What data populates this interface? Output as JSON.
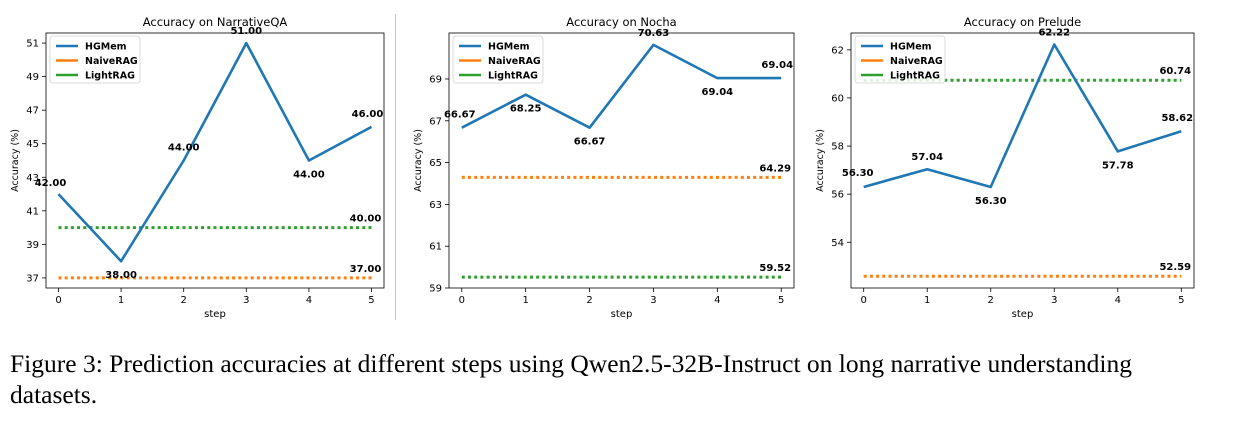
{
  "chart_data": [
    {
      "type": "line",
      "title": "Accuracy on NarrativeQA",
      "xlabel": "step",
      "ylabel": "Accuracy (%)",
      "x": [
        0,
        1,
        2,
        3,
        4,
        5
      ],
      "xticks": [
        "0",
        "1",
        "2",
        "3",
        "4",
        "5"
      ],
      "yticks": [
        "37",
        "39",
        "41",
        "43",
        "45",
        "47",
        "49",
        "51"
      ],
      "ylim": [
        36.4,
        51.6
      ],
      "legend_position": "upper-left",
      "series": [
        {
          "name": "HGMem",
          "color": "#1f77b4",
          "style": "solid",
          "values": [
            42.0,
            38.0,
            44.0,
            51.0,
            44.0,
            46.0
          ],
          "labels": [
            "42.00",
            "38.00",
            "44.00",
            "51.00",
            "44.00",
            "46.00"
          ]
        },
        {
          "name": "NaiveRAG",
          "color": "#ff7f0e",
          "style": "dotted",
          "values": [
            37.0,
            37.0,
            37.0,
            37.0,
            37.0,
            37.0
          ],
          "labels": [
            "",
            "",
            "",
            "",
            "",
            "37.00"
          ]
        },
        {
          "name": "LightRAG",
          "color": "#2ca02c",
          "style": "dotted",
          "values": [
            40.0,
            40.0,
            40.0,
            40.0,
            40.0,
            40.0
          ],
          "labels": [
            "",
            "",
            "",
            "",
            "",
            "40.00"
          ]
        }
      ]
    },
    {
      "type": "line",
      "title": "Accuracy on Nocha",
      "xlabel": "step",
      "ylabel": "Accuracy (%)",
      "x": [
        0,
        1,
        2,
        3,
        4,
        5
      ],
      "xticks": [
        "0",
        "1",
        "2",
        "3",
        "4",
        "5"
      ],
      "yticks": [
        "59",
        "61",
        "63",
        "65",
        "67",
        "69"
      ],
      "ylim": [
        59.0,
        71.2
      ],
      "legend_position": "upper-left",
      "series": [
        {
          "name": "HGMem",
          "color": "#1f77b4",
          "style": "solid",
          "values": [
            66.67,
            68.25,
            66.67,
            70.63,
            69.04,
            69.04
          ],
          "labels": [
            "66.67",
            "68.25",
            "66.67",
            "70.63",
            "69.04",
            "69.04"
          ]
        },
        {
          "name": "NaiveRAG",
          "color": "#ff7f0e",
          "style": "dotted",
          "values": [
            64.29,
            64.29,
            64.29,
            64.29,
            64.29,
            64.29
          ],
          "labels": [
            "",
            "",
            "",
            "",
            "",
            "64.29"
          ]
        },
        {
          "name": "LightRAG",
          "color": "#2ca02c",
          "style": "dotted",
          "values": [
            59.52,
            59.52,
            59.52,
            59.52,
            59.52,
            59.52
          ],
          "labels": [
            "",
            "",
            "",
            "",
            "",
            "59.52"
          ]
        }
      ]
    },
    {
      "type": "line",
      "title": "Accuracy on Prelude",
      "xlabel": "step",
      "ylabel": "Accuracy (%)",
      "x": [
        0,
        1,
        2,
        3,
        4,
        5
      ],
      "xticks": [
        "0",
        "1",
        "2",
        "3",
        "4",
        "5"
      ],
      "yticks": [
        "54",
        "56",
        "58",
        "60",
        "62"
      ],
      "ylim": [
        52.1,
        62.7
      ],
      "legend_position": "upper-left",
      "series": [
        {
          "name": "HGMem",
          "color": "#1f77b4",
          "style": "solid",
          "values": [
            56.3,
            57.04,
            56.3,
            62.22,
            57.78,
            58.62
          ],
          "labels": [
            "56.30",
            "57.04",
            "56.30",
            "62.22",
            "57.78",
            "58.62"
          ]
        },
        {
          "name": "NaiveRAG",
          "color": "#ff7f0e",
          "style": "dotted",
          "values": [
            52.59,
            52.59,
            52.59,
            52.59,
            52.59,
            52.59
          ],
          "labels": [
            "",
            "",
            "",
            "",
            "",
            "52.59"
          ]
        },
        {
          "name": "LightRAG",
          "color": "#2ca02c",
          "style": "dotted",
          "values": [
            60.74,
            60.74,
            60.74,
            60.74,
            60.74,
            60.74
          ],
          "labels": [
            "",
            "",
            "",
            "",
            "",
            "60.74"
          ]
        }
      ]
    }
  ],
  "caption": "Figure 3:  Prediction accuracies at different steps using Qwen2.5-32B-Instruct on long narrative understanding datasets."
}
